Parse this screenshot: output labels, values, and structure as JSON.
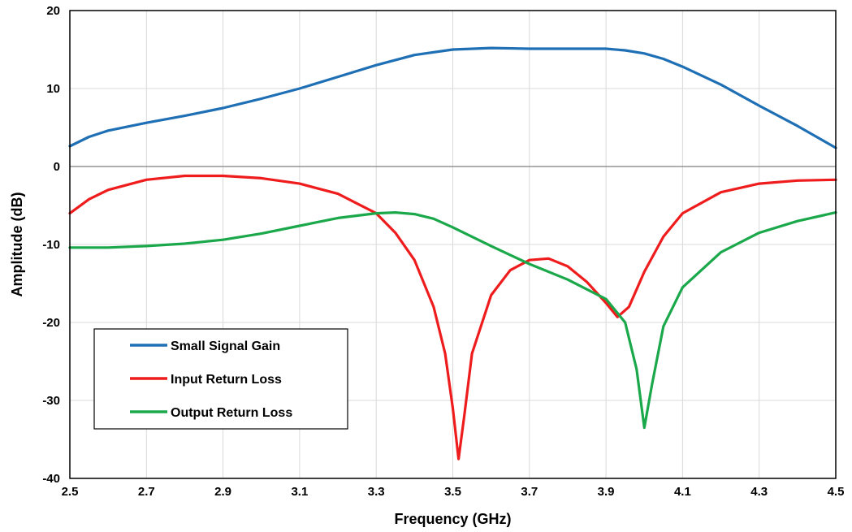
{
  "chart_data": {
    "type": "line",
    "title": "",
    "xlabel": "Frequency (GHz)",
    "ylabel": "Amplitude (dB)",
    "xlim": [
      2.5,
      4.5
    ],
    "ylim": [
      -40,
      20
    ],
    "xticks": [
      "2.5",
      "2.7",
      "2.9",
      "3.1",
      "3.3",
      "3.5",
      "3.7",
      "3.9",
      "4.1",
      "4.3",
      "4.5"
    ],
    "yticks": [
      "20",
      "10",
      "0",
      "-10",
      "-20",
      "-30",
      "-40"
    ],
    "grid": true,
    "legend_position": "bottom-left",
    "series": [
      {
        "name": "Small Signal Gain",
        "color": "#1f6fb5",
        "points": [
          [
            2.5,
            2.6
          ],
          [
            2.55,
            3.8
          ],
          [
            2.6,
            4.6
          ],
          [
            2.7,
            5.6
          ],
          [
            2.8,
            6.5
          ],
          [
            2.9,
            7.5
          ],
          [
            3.0,
            8.7
          ],
          [
            3.1,
            10.0
          ],
          [
            3.2,
            11.5
          ],
          [
            3.3,
            13.0
          ],
          [
            3.4,
            14.3
          ],
          [
            3.5,
            15.0
          ],
          [
            3.6,
            15.2
          ],
          [
            3.7,
            15.1
          ],
          [
            3.8,
            15.1
          ],
          [
            3.9,
            15.1
          ],
          [
            3.95,
            14.9
          ],
          [
            4.0,
            14.5
          ],
          [
            4.05,
            13.8
          ],
          [
            4.1,
            12.8
          ],
          [
            4.2,
            10.5
          ],
          [
            4.3,
            7.8
          ],
          [
            4.4,
            5.2
          ],
          [
            4.45,
            3.8
          ],
          [
            4.5,
            2.4
          ]
        ]
      },
      {
        "name": "Input Return Loss",
        "color": "#ee1c1c",
        "points": [
          [
            2.5,
            -6.0
          ],
          [
            2.55,
            -4.2
          ],
          [
            2.6,
            -3.0
          ],
          [
            2.7,
            -1.7
          ],
          [
            2.8,
            -1.2
          ],
          [
            2.9,
            -1.2
          ],
          [
            3.0,
            -1.5
          ],
          [
            3.1,
            -2.2
          ],
          [
            3.2,
            -3.5
          ],
          [
            3.3,
            -6.0
          ],
          [
            3.35,
            -8.5
          ],
          [
            3.4,
            -12.0
          ],
          [
            3.45,
            -18.0
          ],
          [
            3.48,
            -24.0
          ],
          [
            3.5,
            -31.0
          ],
          [
            3.515,
            -37.5
          ],
          [
            3.53,
            -32.0
          ],
          [
            3.55,
            -24.0
          ],
          [
            3.6,
            -16.5
          ],
          [
            3.65,
            -13.3
          ],
          [
            3.7,
            -12.0
          ],
          [
            3.75,
            -11.8
          ],
          [
            3.8,
            -12.8
          ],
          [
            3.85,
            -14.8
          ],
          [
            3.9,
            -17.5
          ],
          [
            3.93,
            -19.3
          ],
          [
            3.96,
            -18.0
          ],
          [
            4.0,
            -13.5
          ],
          [
            4.05,
            -9.0
          ],
          [
            4.1,
            -6.0
          ],
          [
            4.2,
            -3.3
          ],
          [
            4.3,
            -2.2
          ],
          [
            4.4,
            -1.8
          ],
          [
            4.5,
            -1.7
          ]
        ]
      },
      {
        "name": "Output Return Loss",
        "color": "#1aa84b",
        "points": [
          [
            2.5,
            -10.4
          ],
          [
            2.6,
            -10.4
          ],
          [
            2.7,
            -10.2
          ],
          [
            2.8,
            -9.9
          ],
          [
            2.9,
            -9.4
          ],
          [
            3.0,
            -8.6
          ],
          [
            3.1,
            -7.6
          ],
          [
            3.2,
            -6.6
          ],
          [
            3.3,
            -6.0
          ],
          [
            3.35,
            -5.9
          ],
          [
            3.4,
            -6.1
          ],
          [
            3.45,
            -6.7
          ],
          [
            3.5,
            -7.8
          ],
          [
            3.6,
            -10.2
          ],
          [
            3.7,
            -12.5
          ],
          [
            3.8,
            -14.5
          ],
          [
            3.9,
            -17.0
          ],
          [
            3.95,
            -20.0
          ],
          [
            3.98,
            -26.0
          ],
          [
            4.0,
            -33.5
          ],
          [
            4.02,
            -28.0
          ],
          [
            4.05,
            -20.5
          ],
          [
            4.1,
            -15.5
          ],
          [
            4.2,
            -11.0
          ],
          [
            4.3,
            -8.5
          ],
          [
            4.4,
            -7.0
          ],
          [
            4.5,
            -5.9
          ]
        ]
      }
    ]
  }
}
